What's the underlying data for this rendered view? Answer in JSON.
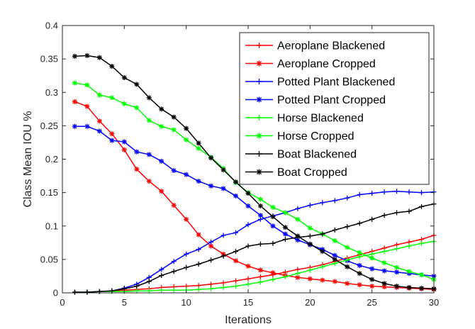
{
  "chart_data": {
    "type": "line",
    "title": "",
    "xlabel": "Iterations",
    "ylabel": "Class Mean IOU %",
    "xlim": [
      0,
      30
    ],
    "ylim": [
      0,
      0.4
    ],
    "xticks": [
      0,
      5,
      10,
      15,
      20,
      25,
      30
    ],
    "xtick_labels": [
      "0",
      "5",
      "10",
      "15",
      "20",
      "25",
      "30"
    ],
    "yticks": [
      0,
      0.05,
      0.1,
      0.15,
      0.2,
      0.25,
      0.3,
      0.35,
      0.4
    ],
    "ytick_labels": [
      "0",
      "0.05",
      "0.1",
      "0.15",
      "0.2",
      "0.25",
      "0.3",
      "0.35",
      "0.4"
    ],
    "grid": false,
    "legend_position": "top-right",
    "x": [
      1,
      2,
      3,
      4,
      5,
      6,
      7,
      8,
      9,
      10,
      11,
      12,
      13,
      14,
      15,
      16,
      17,
      18,
      19,
      20,
      21,
      22,
      23,
      24,
      25,
      26,
      27,
      28,
      29,
      30
    ],
    "series": [
      {
        "name": "Aeroplane Blackened",
        "color": "#ff0000",
        "marker": "plus",
        "values": [
          0.001,
          0.001,
          0.002,
          0.003,
          0.004,
          0.005,
          0.006,
          0.008,
          0.009,
          0.01,
          0.011,
          0.013,
          0.015,
          0.018,
          0.021,
          0.024,
          0.027,
          0.031,
          0.035,
          0.038,
          0.042,
          0.047,
          0.052,
          0.057,
          0.062,
          0.067,
          0.072,
          0.076,
          0.08,
          0.086
        ]
      },
      {
        "name": "Aeroplane Cropped",
        "color": "#ff0000",
        "marker": "asterisk",
        "values": [
          0.286,
          0.279,
          0.257,
          0.238,
          0.214,
          0.185,
          0.167,
          0.152,
          0.131,
          0.11,
          0.087,
          0.07,
          0.058,
          0.048,
          0.04,
          0.034,
          0.03,
          0.026,
          0.023,
          0.021,
          0.019,
          0.017,
          0.014,
          0.012,
          0.01,
          0.009,
          0.008,
          0.007,
          0.006,
          0.005
        ]
      },
      {
        "name": "Potted Plant Blackened",
        "color": "#0000ff",
        "marker": "plus",
        "values": [
          0.001,
          0.001,
          0.002,
          0.003,
          0.007,
          0.013,
          0.023,
          0.035,
          0.047,
          0.058,
          0.065,
          0.076,
          0.086,
          0.09,
          0.102,
          0.11,
          0.115,
          0.12,
          0.126,
          0.131,
          0.135,
          0.138,
          0.142,
          0.147,
          0.149,
          0.151,
          0.152,
          0.151,
          0.15,
          0.151
        ]
      },
      {
        "name": "Potted Plant Cropped",
        "color": "#0000ff",
        "marker": "asterisk",
        "values": [
          0.249,
          0.249,
          0.242,
          0.228,
          0.226,
          0.211,
          0.207,
          0.197,
          0.183,
          0.177,
          0.167,
          0.16,
          0.156,
          0.145,
          0.13,
          0.116,
          0.1,
          0.088,
          0.079,
          0.072,
          0.065,
          0.056,
          0.048,
          0.041,
          0.036,
          0.033,
          0.031,
          0.029,
          0.027,
          0.025
        ]
      },
      {
        "name": "Horse Blackened",
        "color": "#00ff00",
        "marker": "plus",
        "values": [
          0.001,
          0.001,
          0.002,
          0.002,
          0.002,
          0.003,
          0.003,
          0.004,
          0.004,
          0.004,
          0.005,
          0.006,
          0.008,
          0.01,
          0.013,
          0.016,
          0.02,
          0.024,
          0.029,
          0.034,
          0.039,
          0.044,
          0.049,
          0.054,
          0.058,
          0.062,
          0.066,
          0.07,
          0.074,
          0.077
        ]
      },
      {
        "name": "Horse Cropped",
        "color": "#00ff00",
        "marker": "asterisk",
        "values": [
          0.314,
          0.311,
          0.296,
          0.292,
          0.283,
          0.277,
          0.258,
          0.249,
          0.244,
          0.229,
          0.216,
          0.203,
          0.186,
          0.165,
          0.15,
          0.14,
          0.128,
          0.12,
          0.11,
          0.097,
          0.088,
          0.078,
          0.068,
          0.06,
          0.052,
          0.045,
          0.038,
          0.032,
          0.027,
          0.02
        ]
      },
      {
        "name": "Boat  Blackened",
        "color": "#000000",
        "marker": "plus",
        "values": [
          0.001,
          0.001,
          0.002,
          0.003,
          0.006,
          0.01,
          0.017,
          0.026,
          0.032,
          0.038,
          0.043,
          0.049,
          0.055,
          0.062,
          0.07,
          0.073,
          0.074,
          0.08,
          0.083,
          0.085,
          0.088,
          0.094,
          0.099,
          0.104,
          0.11,
          0.116,
          0.12,
          0.122,
          0.129,
          0.133
        ]
      },
      {
        "name": "Boat Cropped",
        "color": "#000000",
        "marker": "asterisk",
        "values": [
          0.354,
          0.355,
          0.352,
          0.339,
          0.322,
          0.312,
          0.292,
          0.275,
          0.263,
          0.246,
          0.224,
          0.202,
          0.184,
          0.166,
          0.149,
          0.13,
          0.114,
          0.098,
          0.085,
          0.073,
          0.062,
          0.05,
          0.039,
          0.029,
          0.02,
          0.014,
          0.01,
          0.008,
          0.007,
          0.006
        ]
      }
    ]
  }
}
